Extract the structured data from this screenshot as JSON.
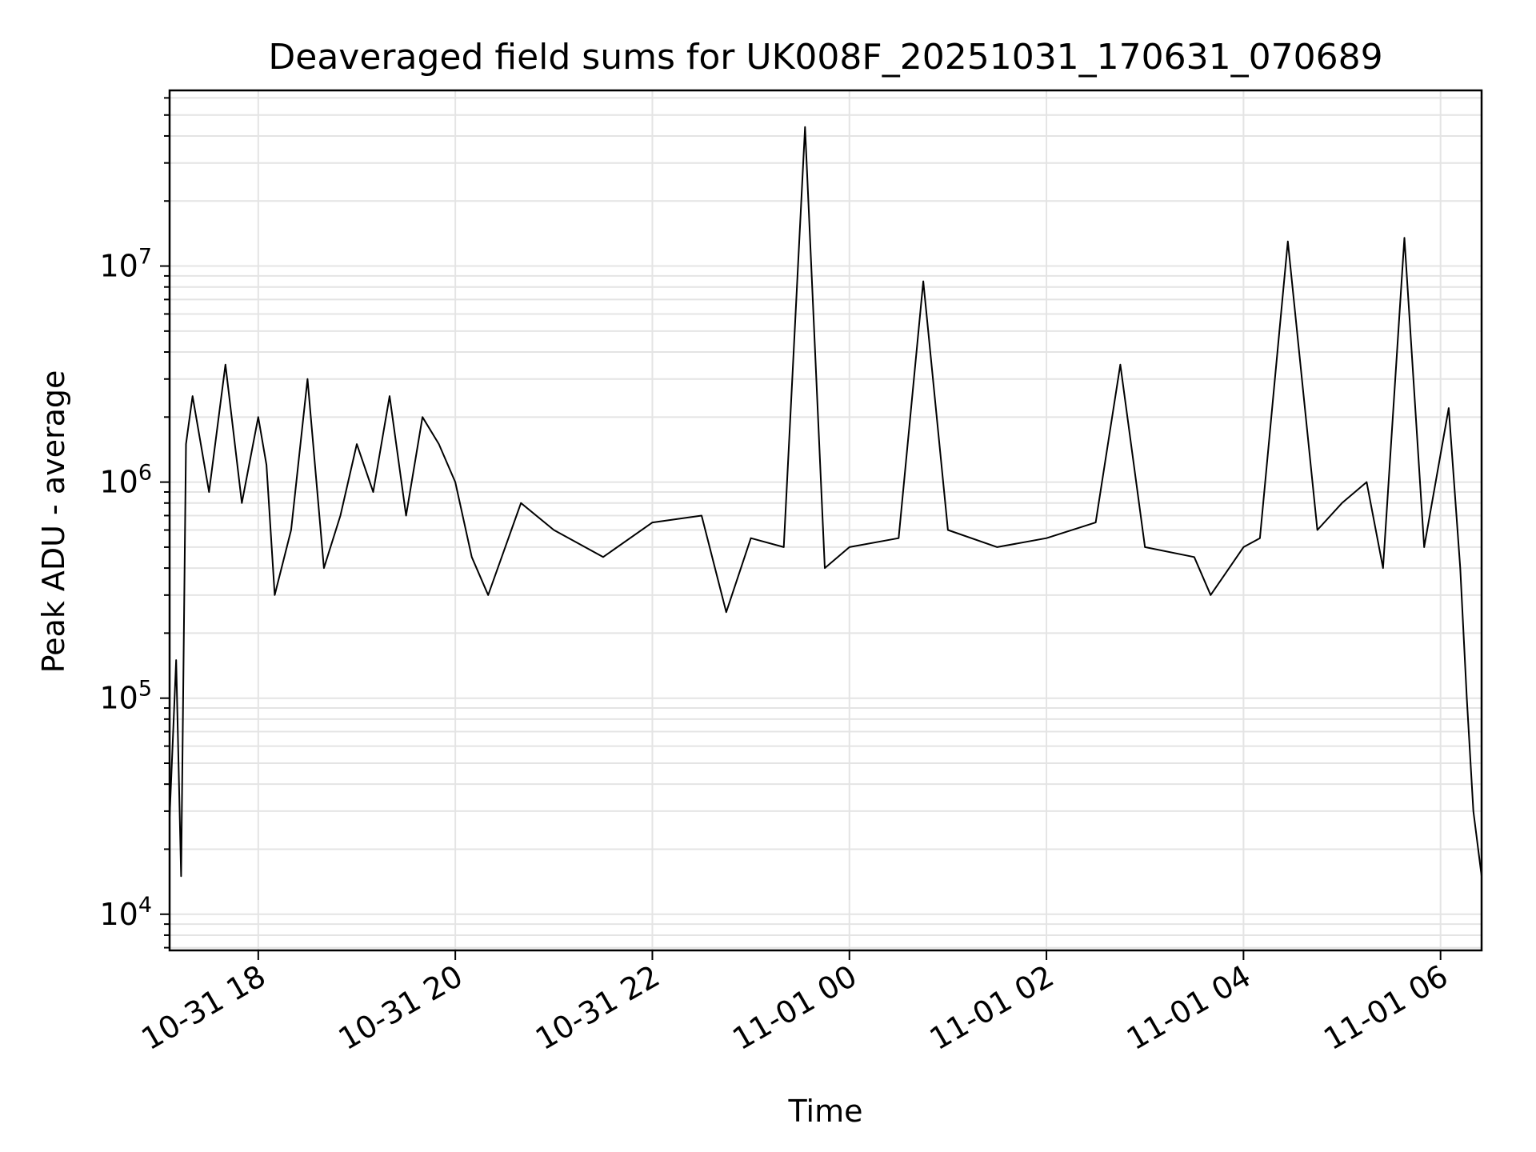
{
  "chart_data": {
    "type": "line",
    "title": "Deaveraged field sums for UK008F_20251031_170631_070689",
    "xlabel": "Time",
    "ylabel": "Peak ADU - average",
    "xlim": [
      "2025-10-31 17:06",
      "2025-11-01 06:25"
    ],
    "ylim": [
      6800,
      65000000
    ],
    "y_scale": "log",
    "grid": true,
    "line_color": "#000000",
    "x_ticks": [
      {
        "label": "10-31 18",
        "value": "2025-10-31 18:00"
      },
      {
        "label": "10-31 20",
        "value": "2025-10-31 20:00"
      },
      {
        "label": "10-31 22",
        "value": "2025-10-31 22:00"
      },
      {
        "label": "11-01 00",
        "value": "2025-11-01 00:00"
      },
      {
        "label": "11-01 02",
        "value": "2025-11-01 02:00"
      },
      {
        "label": "11-01 04",
        "value": "2025-11-01 04:00"
      },
      {
        "label": "11-01 06",
        "value": "2025-11-01 06:00"
      }
    ],
    "y_ticks": [
      {
        "base": "10",
        "exp": "4",
        "value": 10000
      },
      {
        "base": "10",
        "exp": "5",
        "value": 100000
      },
      {
        "base": "10",
        "exp": "6",
        "value": 1000000
      },
      {
        "base": "10",
        "exp": "7",
        "value": 10000000
      }
    ],
    "series": [
      {
        "x": [
          "2025-10-31 17:06",
          "2025-10-31 17:10",
          "2025-10-31 17:13",
          "2025-10-31 17:16",
          "2025-10-31 17:20",
          "2025-10-31 17:30",
          "2025-10-31 17:40",
          "2025-10-31 17:50",
          "2025-10-31 18:00",
          "2025-10-31 18:05",
          "2025-10-31 18:10",
          "2025-10-31 18:20",
          "2025-10-31 18:30",
          "2025-10-31 18:40",
          "2025-10-31 18:50",
          "2025-10-31 19:00",
          "2025-10-31 19:10",
          "2025-10-31 19:20",
          "2025-10-31 19:30",
          "2025-10-31 19:40",
          "2025-10-31 19:50",
          "2025-10-31 20:00",
          "2025-10-31 20:10",
          "2025-10-31 20:20",
          "2025-10-31 20:40",
          "2025-10-31 21:00",
          "2025-10-31 21:30",
          "2025-10-31 22:00",
          "2025-10-31 22:30",
          "2025-10-31 22:45",
          "2025-10-31 23:00",
          "2025-10-31 23:20",
          "2025-10-31 23:33",
          "2025-10-31 23:45",
          "2025-11-01 00:00",
          "2025-11-01 00:30",
          "2025-11-01 00:45",
          "2025-11-01 01:00",
          "2025-11-01 01:30",
          "2025-11-01 02:00",
          "2025-11-01 02:30",
          "2025-11-01 02:45",
          "2025-11-01 03:00",
          "2025-11-01 03:30",
          "2025-11-01 03:40",
          "2025-11-01 04:00",
          "2025-11-01 04:10",
          "2025-11-01 04:27",
          "2025-11-01 04:45",
          "2025-11-01 05:00",
          "2025-11-01 05:15",
          "2025-11-01 05:25",
          "2025-11-01 05:38",
          "2025-11-01 05:50",
          "2025-11-01 06:05",
          "2025-11-01 06:12",
          "2025-11-01 06:16",
          "2025-11-01 06:20",
          "2025-11-01 06:25"
        ],
        "values": [
          28000,
          150000,
          15000,
          1500000,
          2500000,
          900000,
          3500000,
          800000,
          2000000,
          1200000,
          300000,
          600000,
          3000000,
          400000,
          700000,
          1500000,
          900000,
          2500000,
          700000,
          2000000,
          1500000,
          1000000,
          450000,
          300000,
          800000,
          600000,
          450000,
          650000,
          700000,
          250000,
          550000,
          500000,
          44000000,
          400000,
          500000,
          550000,
          8500000,
          600000,
          500000,
          550000,
          650000,
          3500000,
          500000,
          450000,
          300000,
          500000,
          550000,
          13000000,
          600000,
          800000,
          1000000,
          400000,
          13500000,
          500000,
          2200000,
          400000,
          100000,
          30000,
          15000
        ]
      }
    ]
  }
}
